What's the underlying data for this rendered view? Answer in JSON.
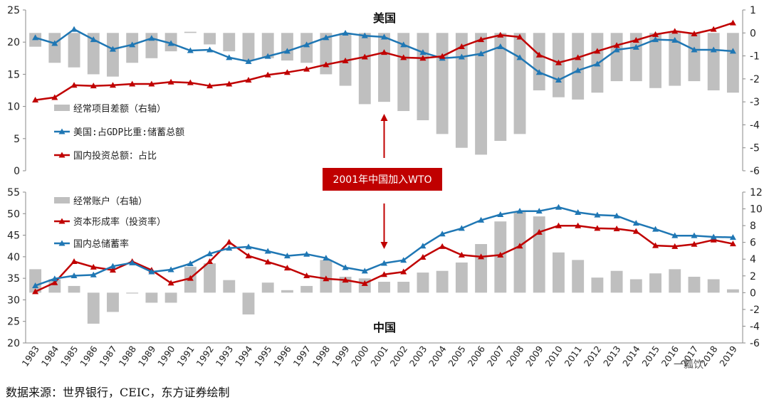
{
  "chart_data": [
    {
      "type": "bar+line",
      "title": "美国",
      "x": [
        1983,
        1984,
        1985,
        1986,
        1987,
        1988,
        1989,
        1990,
        1991,
        1992,
        1993,
        1994,
        1995,
        1996,
        1997,
        1998,
        1999,
        2000,
        2001,
        2002,
        2003,
        2004,
        2005,
        2006,
        2007,
        2008,
        2009,
        2010,
        2011,
        2012,
        2013,
        2014,
        2015,
        2016,
        2017,
        2018,
        2019
      ],
      "ylim": [
        0,
        25
      ],
      "yticks": [
        "0",
        "5",
        "10",
        "15",
        "20",
        "25"
      ],
      "y2lim": [
        -6,
        1
      ],
      "y2ticks": [
        "-6",
        "-5",
        "-4",
        "-3",
        "-2",
        "-1",
        "0",
        "1"
      ],
      "legend": [
        "经常项目差额（右轴）",
        "美国:占GDP比重:储蓄总额",
        "国内投资总额：占比"
      ],
      "series": [
        {
          "name": "经常项目差额（右轴）",
          "kind": "bar",
          "axis": "right",
          "color": "#bfbfbf",
          "values": [
            -0.6,
            -1.3,
            -1.5,
            -1.8,
            -1.9,
            -1.3,
            -1.1,
            -0.8,
            0.05,
            -0.5,
            -0.8,
            -1.2,
            -1.1,
            -1.2,
            -1.3,
            -1.8,
            -2.3,
            -3.1,
            -3.0,
            -3.4,
            -3.8,
            -4.4,
            -5.0,
            -5.3,
            -4.7,
            -4.4,
            -2.5,
            -2.8,
            -2.9,
            -2.6,
            -2.1,
            -2.1,
            -2.4,
            -2.3,
            -2.1,
            -2.5,
            -2.6
          ]
        },
        {
          "name": "美国:占GDP比重:储蓄总额",
          "kind": "line",
          "axis": "left",
          "color": "#1f77b4",
          "values": [
            20.7,
            19.8,
            22.0,
            20.4,
            18.9,
            19.6,
            20.6,
            19.8,
            18.7,
            18.8,
            17.6,
            17.0,
            17.8,
            18.6,
            19.6,
            20.7,
            21.4,
            21.0,
            20.8,
            19.6,
            18.4,
            17.5,
            17.7,
            18.2,
            19.3,
            17.6,
            15.3,
            14.1,
            15.6,
            16.6,
            18.8,
            19.2,
            20.4,
            20.3,
            18.8,
            18.8,
            18.6
          ]
        },
        {
          "name": "国内投资总额：占比",
          "kind": "line",
          "axis": "left",
          "color": "#c00000",
          "values": [
            11.0,
            11.4,
            13.3,
            13.2,
            13.3,
            13.5,
            13.5,
            13.8,
            13.7,
            13.2,
            13.5,
            14.1,
            14.9,
            15.3,
            15.8,
            16.5,
            17.1,
            17.7,
            18.4,
            17.6,
            17.5,
            17.8,
            19.3,
            20.4,
            21.1,
            20.8,
            18.0,
            16.8,
            17.6,
            18.6,
            19.5,
            20.3,
            21.2,
            21.7,
            21.3,
            22.0,
            23.0
          ]
        }
      ]
    },
    {
      "type": "bar+line",
      "title": "中国",
      "x": [
        1983,
        1984,
        1985,
        1986,
        1987,
        1988,
        1989,
        1990,
        1991,
        1992,
        1993,
        1994,
        1995,
        1996,
        1997,
        1998,
        1999,
        2000,
        2001,
        2002,
        2003,
        2004,
        2005,
        2006,
        2007,
        2008,
        2009,
        2010,
        2011,
        2012,
        2013,
        2014,
        2015,
        2016,
        2017,
        2018,
        2019
      ],
      "ylim": [
        20,
        55
      ],
      "yticks": [
        "20",
        "25",
        "30",
        "35",
        "40",
        "45",
        "50",
        "55"
      ],
      "y2lim": [
        -6,
        12
      ],
      "y2ticks": [
        "-6",
        "-4",
        "-2",
        "0",
        "2",
        "4",
        "6",
        "8",
        "10",
        "12"
      ],
      "legend": [
        "经常账户（右轴）",
        "资本形成率（投资率）",
        "国内总储蓄率"
      ],
      "series": [
        {
          "name": "经常账户（右轴）",
          "kind": "bar",
          "axis": "right",
          "color": "#bfbfbf",
          "values": [
            2.8,
            1.6,
            0.8,
            -3.7,
            -2.3,
            -0.1,
            -1.2,
            -1.2,
            3.1,
            3.5,
            1.5,
            -2.6,
            1.2,
            0.3,
            0.8,
            3.9,
            1.9,
            1.7,
            1.3,
            1.3,
            2.4,
            2.6,
            3.6,
            5.8,
            8.5,
            9.7,
            9.1,
            4.8,
            3.9,
            1.8,
            2.6,
            1.6,
            2.3,
            2.8,
            1.9,
            1.6,
            0.4
          ]
        },
        {
          "name": "资本形成率（投资率）",
          "kind": "line",
          "axis": "left",
          "color": "#c00000",
          "values": [
            31.9,
            34.0,
            38.9,
            37.6,
            36.9,
            38.9,
            36.9,
            33.9,
            35.0,
            38.9,
            43.4,
            40.2,
            38.8,
            37.4,
            35.6,
            34.9,
            34.6,
            33.8,
            35.9,
            36.5,
            39.9,
            42.4,
            40.4,
            40.0,
            40.4,
            42.5,
            45.7,
            47.2,
            47.2,
            46.6,
            46.5,
            45.9,
            42.6,
            42.4,
            42.9,
            43.9,
            43.0
          ]
        },
        {
          "name": "国内总储蓄率",
          "kind": "line",
          "axis": "left",
          "color": "#1f77b4",
          "values": [
            33.3,
            34.9,
            35.6,
            35.8,
            37.8,
            38.6,
            36.5,
            37.0,
            38.4,
            40.7,
            42.0,
            42.3,
            41.3,
            40.2,
            40.6,
            39.7,
            37.5,
            36.7,
            38.5,
            39.2,
            42.5,
            45.3,
            46.6,
            48.5,
            49.8,
            50.6,
            50.6,
            51.5,
            50.3,
            49.7,
            49.5,
            47.8,
            46.4,
            44.9,
            44.9,
            44.6,
            44.5
          ]
        }
      ]
    }
  ],
  "annotation": "2001年中国加入WTO",
  "source": "数据来源：世界银行，CEIC，东方证券绘制",
  "watermark": "一瓢饮"
}
